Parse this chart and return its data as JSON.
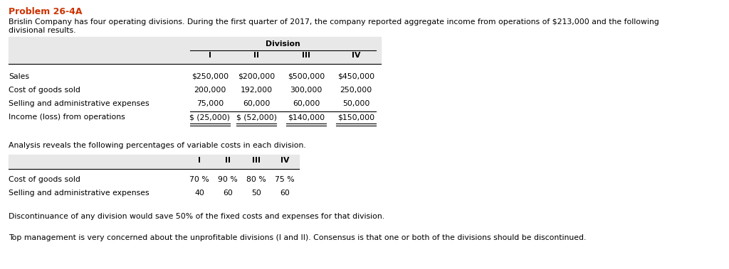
{
  "title": "Problem 26-4A",
  "title_color": "#CC3300",
  "intro_line1": "Brislin Company has four operating divisions. During the first quarter of 2017, the company reported aggregate income from operations of $213,000 and the following",
  "intro_line2": "divisional results.",
  "table1_header_group": "Division",
  "table1_cols": [
    "I",
    "II",
    "III",
    "IV"
  ],
  "table1_rows": [
    [
      "Sales",
      "$250,000",
      "$200,000",
      "$500,000",
      "$450,000"
    ],
    [
      "Cost of goods sold",
      "200,000",
      "192,000",
      "300,000",
      "250,000"
    ],
    [
      "Selling and administrative expenses",
      "75,000",
      "60,000",
      "60,000",
      "50,000"
    ],
    [
      "Income (loss) from operations",
      "$ (25,000)",
      "$ (52,000)",
      "$140,000",
      "$150,000"
    ]
  ],
  "analysis_text": "Analysis reveals the following percentages of variable costs in each division.",
  "table2_cols": [
    "I",
    "II",
    "III",
    "IV"
  ],
  "table2_rows": [
    [
      "Cost of goods sold",
      "70 %",
      "90 %",
      "80 %",
      "75 %"
    ],
    [
      "Selling and administrative expenses",
      "40",
      "60",
      "50",
      "60"
    ]
  ],
  "footnote1": "Discontinuance of any division would save 50% of the fixed costs and expenses for that division.",
  "footnote2": "Top management is very concerned about the unprofitable divisions (I and II). Consensus is that one or both of the divisions should be discontinued.",
  "bg_color": "#FFFFFF",
  "table_bg": "#E8E8E8",
  "fs_title": 9,
  "fs_body": 7.8,
  "fs_table": 7.8
}
